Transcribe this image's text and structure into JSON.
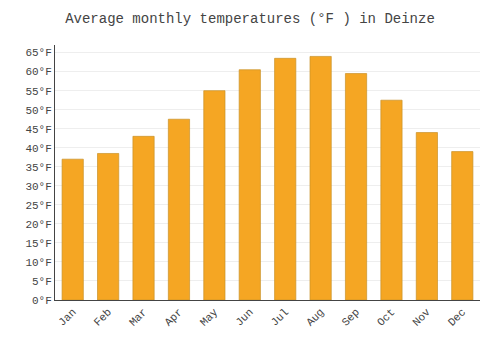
{
  "chart_data": {
    "type": "bar",
    "title": "Average monthly temperatures (°F ) in Deinze",
    "categories": [
      "Jan",
      "Feb",
      "Mar",
      "Apr",
      "May",
      "Jun",
      "Jul",
      "Aug",
      "Sep",
      "Oct",
      "Nov",
      "Dec"
    ],
    "values": [
      37.0,
      38.5,
      43.0,
      47.5,
      55.0,
      60.5,
      63.5,
      64.0,
      59.5,
      52.5,
      44.0,
      39.0
    ],
    "color": "#F5A623",
    "ylim": [
      0,
      67
    ],
    "yticks": [
      {
        "value": 0,
        "label": "0°F"
      },
      {
        "value": 5,
        "label": "5°F"
      },
      {
        "value": 10,
        "label": "10°F"
      },
      {
        "value": 15,
        "label": "15°F"
      },
      {
        "value": 20,
        "label": "20°F"
      },
      {
        "value": 25,
        "label": "25°F"
      },
      {
        "value": 30,
        "label": "30°F"
      },
      {
        "value": 35,
        "label": "35°F"
      },
      {
        "value": 40,
        "label": "40°F"
      },
      {
        "value": 45,
        "label": "45°F"
      },
      {
        "value": 50,
        "label": "50°F"
      },
      {
        "value": 55,
        "label": "55°F"
      },
      {
        "value": 60,
        "label": "60°F"
      },
      {
        "value": 65,
        "label": "65°F"
      }
    ],
    "grid": true
  }
}
